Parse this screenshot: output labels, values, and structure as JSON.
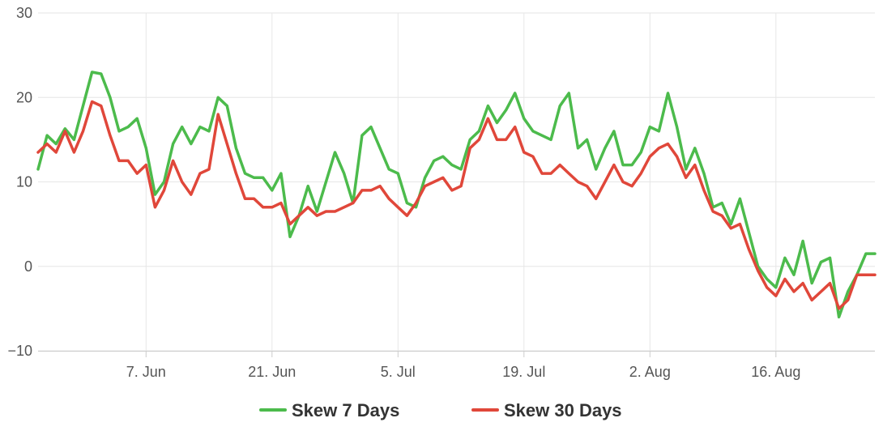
{
  "chart_data": {
    "type": "line",
    "title": "",
    "xlabel": "",
    "ylabel": "",
    "ylim": [
      -10,
      30
    ],
    "yticks": [
      30,
      20,
      10,
      0,
      -10
    ],
    "yticklabels": [
      "30",
      "20",
      "10",
      "0",
      "−10"
    ],
    "grid": true,
    "legend_position": "bottom-center",
    "xticks": [
      {
        "date": "2021-06-07",
        "label": "7. Jun"
      },
      {
        "date": "2021-06-21",
        "label": "21. Jun"
      },
      {
        "date": "2021-07-05",
        "label": "5. Jul"
      },
      {
        "date": "2021-07-19",
        "label": "19. Jul"
      },
      {
        "date": "2021-08-02",
        "label": "2. Aug"
      },
      {
        "date": "2021-08-16",
        "label": "16. Aug"
      }
    ],
    "x_range": [
      "2021-05-26",
      "2021-08-27"
    ],
    "series": [
      {
        "name": "Skew 7 Days",
        "color": "#4cbb4c",
        "points": [
          [
            "2021-05-26",
            11.5
          ],
          [
            "2021-05-27",
            15.5
          ],
          [
            "2021-05-28",
            14.5
          ],
          [
            "2021-05-29",
            16.3
          ],
          [
            "2021-05-30",
            15.0
          ],
          [
            "2021-05-31",
            19.0
          ],
          [
            "2021-06-01",
            23.0
          ],
          [
            "2021-06-02",
            22.8
          ],
          [
            "2021-06-03",
            20.0
          ],
          [
            "2021-06-04",
            16.0
          ],
          [
            "2021-06-05",
            16.5
          ],
          [
            "2021-06-06",
            17.5
          ],
          [
            "2021-06-07",
            14.0
          ],
          [
            "2021-06-08",
            8.5
          ],
          [
            "2021-06-09",
            10.0
          ],
          [
            "2021-06-10",
            14.5
          ],
          [
            "2021-06-11",
            16.5
          ],
          [
            "2021-06-12",
            14.5
          ],
          [
            "2021-06-13",
            16.5
          ],
          [
            "2021-06-14",
            16.0
          ],
          [
            "2021-06-15",
            20.0
          ],
          [
            "2021-06-16",
            19.0
          ],
          [
            "2021-06-17",
            14.0
          ],
          [
            "2021-06-18",
            11.0
          ],
          [
            "2021-06-19",
            10.5
          ],
          [
            "2021-06-20",
            10.5
          ],
          [
            "2021-06-21",
            9.0
          ],
          [
            "2021-06-22",
            11.0
          ],
          [
            "2021-06-23",
            3.5
          ],
          [
            "2021-06-24",
            6.0
          ],
          [
            "2021-06-25",
            9.5
          ],
          [
            "2021-06-26",
            6.5
          ],
          [
            "2021-06-27",
            10.0
          ],
          [
            "2021-06-28",
            13.5
          ],
          [
            "2021-06-29",
            11.0
          ],
          [
            "2021-06-30",
            7.5
          ],
          [
            "2021-07-01",
            15.5
          ],
          [
            "2021-07-02",
            16.5
          ],
          [
            "2021-07-03",
            14.0
          ],
          [
            "2021-07-04",
            11.5
          ],
          [
            "2021-07-05",
            11.0
          ],
          [
            "2021-07-06",
            7.5
          ],
          [
            "2021-07-07",
            7.0
          ],
          [
            "2021-07-08",
            10.5
          ],
          [
            "2021-07-09",
            12.5
          ],
          [
            "2021-07-10",
            13.0
          ],
          [
            "2021-07-11",
            12.0
          ],
          [
            "2021-07-12",
            11.5
          ],
          [
            "2021-07-13",
            15.0
          ],
          [
            "2021-07-14",
            16.0
          ],
          [
            "2021-07-15",
            19.0
          ],
          [
            "2021-07-16",
            17.0
          ],
          [
            "2021-07-17",
            18.5
          ],
          [
            "2021-07-18",
            20.5
          ],
          [
            "2021-07-19",
            17.5
          ],
          [
            "2021-07-20",
            16.0
          ],
          [
            "2021-07-21",
            15.5
          ],
          [
            "2021-07-22",
            15.0
          ],
          [
            "2021-07-23",
            19.0
          ],
          [
            "2021-07-24",
            20.5
          ],
          [
            "2021-07-25",
            14.0
          ],
          [
            "2021-07-26",
            15.0
          ],
          [
            "2021-07-27",
            11.5
          ],
          [
            "2021-07-28",
            14.0
          ],
          [
            "2021-07-29",
            16.0
          ],
          [
            "2021-07-30",
            12.0
          ],
          [
            "2021-07-31",
            12.0
          ],
          [
            "2021-08-01",
            13.5
          ],
          [
            "2021-08-02",
            16.5
          ],
          [
            "2021-08-03",
            16.0
          ],
          [
            "2021-08-04",
            20.5
          ],
          [
            "2021-08-05",
            16.5
          ],
          [
            "2021-08-06",
            11.5
          ],
          [
            "2021-08-07",
            14.0
          ],
          [
            "2021-08-08",
            11.0
          ],
          [
            "2021-08-09",
            7.0
          ],
          [
            "2021-08-10",
            7.5
          ],
          [
            "2021-08-11",
            5.0
          ],
          [
            "2021-08-12",
            8.0
          ],
          [
            "2021-08-13",
            4.0
          ],
          [
            "2021-08-14",
            0.0
          ],
          [
            "2021-08-15",
            -1.5
          ],
          [
            "2021-08-16",
            -2.5
          ],
          [
            "2021-08-17",
            1.0
          ],
          [
            "2021-08-18",
            -1.0
          ],
          [
            "2021-08-19",
            3.0
          ],
          [
            "2021-08-20",
            -2.0
          ],
          [
            "2021-08-21",
            0.5
          ],
          [
            "2021-08-22",
            1.0
          ],
          [
            "2021-08-23",
            -6.0
          ],
          [
            "2021-08-24",
            -3.0
          ],
          [
            "2021-08-25",
            -1.0
          ],
          [
            "2021-08-26",
            1.5
          ],
          [
            "2021-08-27",
            1.5
          ]
        ]
      },
      {
        "name": "Skew 30 Days",
        "color": "#e0473a",
        "points": [
          [
            "2021-05-26",
            13.5
          ],
          [
            "2021-05-27",
            14.5
          ],
          [
            "2021-05-28",
            13.5
          ],
          [
            "2021-05-29",
            16.0
          ],
          [
            "2021-05-30",
            13.5
          ],
          [
            "2021-05-31",
            16.0
          ],
          [
            "2021-06-01",
            19.5
          ],
          [
            "2021-06-02",
            19.0
          ],
          [
            "2021-06-03",
            15.5
          ],
          [
            "2021-06-04",
            12.5
          ],
          [
            "2021-06-05",
            12.5
          ],
          [
            "2021-06-06",
            11.0
          ],
          [
            "2021-06-07",
            12.0
          ],
          [
            "2021-06-08",
            7.0
          ],
          [
            "2021-06-09",
            9.0
          ],
          [
            "2021-06-10",
            12.5
          ],
          [
            "2021-06-11",
            10.0
          ],
          [
            "2021-06-12",
            8.5
          ],
          [
            "2021-06-13",
            11.0
          ],
          [
            "2021-06-14",
            11.5
          ],
          [
            "2021-06-15",
            18.0
          ],
          [
            "2021-06-16",
            14.5
          ],
          [
            "2021-06-17",
            11.0
          ],
          [
            "2021-06-18",
            8.0
          ],
          [
            "2021-06-19",
            8.0
          ],
          [
            "2021-06-20",
            7.0
          ],
          [
            "2021-06-21",
            7.0
          ],
          [
            "2021-06-22",
            7.5
          ],
          [
            "2021-06-23",
            5.0
          ],
          [
            "2021-06-24",
            6.0
          ],
          [
            "2021-06-25",
            7.0
          ],
          [
            "2021-06-26",
            6.0
          ],
          [
            "2021-06-27",
            6.5
          ],
          [
            "2021-06-28",
            6.5
          ],
          [
            "2021-06-29",
            7.0
          ],
          [
            "2021-06-30",
            7.5
          ],
          [
            "2021-07-01",
            9.0
          ],
          [
            "2021-07-02",
            9.0
          ],
          [
            "2021-07-03",
            9.5
          ],
          [
            "2021-07-04",
            8.0
          ],
          [
            "2021-07-05",
            7.0
          ],
          [
            "2021-07-06",
            6.0
          ],
          [
            "2021-07-07",
            7.5
          ],
          [
            "2021-07-08",
            9.5
          ],
          [
            "2021-07-09",
            10.0
          ],
          [
            "2021-07-10",
            10.5
          ],
          [
            "2021-07-11",
            9.0
          ],
          [
            "2021-07-12",
            9.5
          ],
          [
            "2021-07-13",
            14.0
          ],
          [
            "2021-07-14",
            15.0
          ],
          [
            "2021-07-15",
            17.5
          ],
          [
            "2021-07-16",
            15.0
          ],
          [
            "2021-07-17",
            15.0
          ],
          [
            "2021-07-18",
            16.5
          ],
          [
            "2021-07-19",
            13.5
          ],
          [
            "2021-07-20",
            13.0
          ],
          [
            "2021-07-21",
            11.0
          ],
          [
            "2021-07-22",
            11.0
          ],
          [
            "2021-07-23",
            12.0
          ],
          [
            "2021-07-24",
            11.0
          ],
          [
            "2021-07-25",
            10.0
          ],
          [
            "2021-07-26",
            9.5
          ],
          [
            "2021-07-27",
            8.0
          ],
          [
            "2021-07-28",
            10.0
          ],
          [
            "2021-07-29",
            12.0
          ],
          [
            "2021-07-30",
            10.0
          ],
          [
            "2021-07-31",
            9.5
          ],
          [
            "2021-08-01",
            11.0
          ],
          [
            "2021-08-02",
            13.0
          ],
          [
            "2021-08-03",
            14.0
          ],
          [
            "2021-08-04",
            14.5
          ],
          [
            "2021-08-05",
            13.0
          ],
          [
            "2021-08-06",
            10.5
          ],
          [
            "2021-08-07",
            12.0
          ],
          [
            "2021-08-08",
            9.0
          ],
          [
            "2021-08-09",
            6.5
          ],
          [
            "2021-08-10",
            6.0
          ],
          [
            "2021-08-11",
            4.5
          ],
          [
            "2021-08-12",
            5.0
          ],
          [
            "2021-08-13",
            2.0
          ],
          [
            "2021-08-14",
            -0.5
          ],
          [
            "2021-08-15",
            -2.5
          ],
          [
            "2021-08-16",
            -3.5
          ],
          [
            "2021-08-17",
            -1.5
          ],
          [
            "2021-08-18",
            -3.0
          ],
          [
            "2021-08-19",
            -2.0
          ],
          [
            "2021-08-20",
            -4.0
          ],
          [
            "2021-08-21",
            -3.0
          ],
          [
            "2021-08-22",
            -2.0
          ],
          [
            "2021-08-23",
            -5.0
          ],
          [
            "2021-08-24",
            -4.0
          ],
          [
            "2021-08-25",
            -1.0
          ],
          [
            "2021-08-26",
            -1.0
          ],
          [
            "2021-08-27",
            -1.0
          ]
        ]
      }
    ]
  }
}
